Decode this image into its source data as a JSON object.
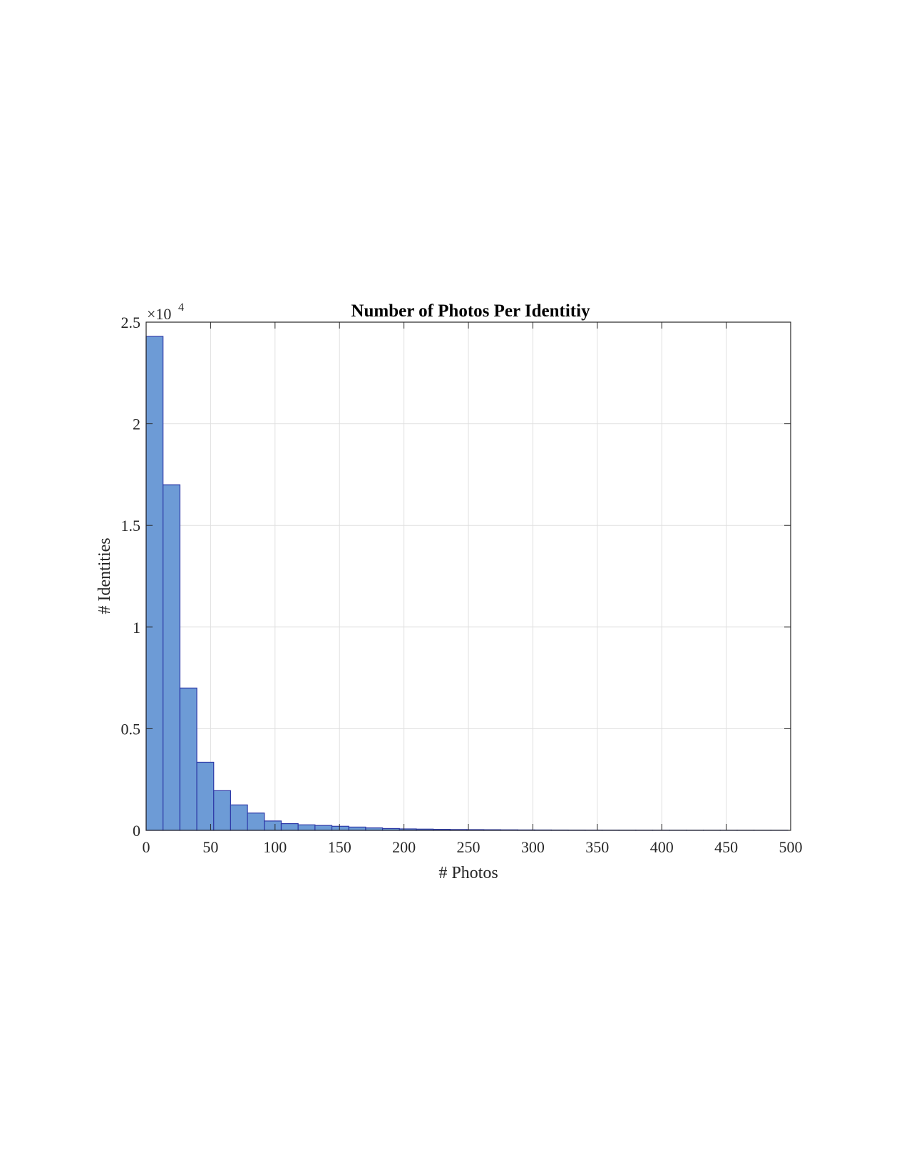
{
  "chart_data": {
    "type": "bar",
    "title": "Number of Photos Per Identitiy",
    "xlabel": "# Photos",
    "ylabel": "# Identities",
    "y_exponent_base": "×10",
    "y_exponent_power": "4",
    "xlim": [
      0,
      500
    ],
    "ylim": [
      0,
      2.5
    ],
    "xticks": [
      0,
      50,
      100,
      150,
      200,
      250,
      300,
      350,
      400,
      450,
      500
    ],
    "xtick_labels": [
      "0",
      "50",
      "100",
      "150",
      "200",
      "250",
      "300",
      "350",
      "400",
      "450",
      "500"
    ],
    "yticks": [
      0,
      0.5,
      1,
      1.5,
      2,
      2.5
    ],
    "ytick_labels": [
      "0",
      "0.5",
      "1",
      "1.5",
      "2",
      "2.5"
    ],
    "grid": true,
    "bin_width": 13.1,
    "bin_edges_start": 0,
    "values": [
      2.43,
      1.7,
      0.7,
      0.335,
      0.195,
      0.125,
      0.085,
      0.046,
      0.033,
      0.027,
      0.024,
      0.02,
      0.016,
      0.012,
      0.009,
      0.007,
      0.006,
      0.005,
      0.004,
      0.0035,
      0.003,
      0.0025,
      0.002,
      0.0018,
      0.0015,
      0.0013,
      0.0011,
      0.001,
      0.0009,
      0.0008,
      0.0007,
      0.0006,
      0.0005,
      0.0005,
      0.0004,
      0.0004,
      0.0003,
      0.0003
    ],
    "bar_fill": "#6d9bd6",
    "bar_edge": "#2e3aa8"
  }
}
